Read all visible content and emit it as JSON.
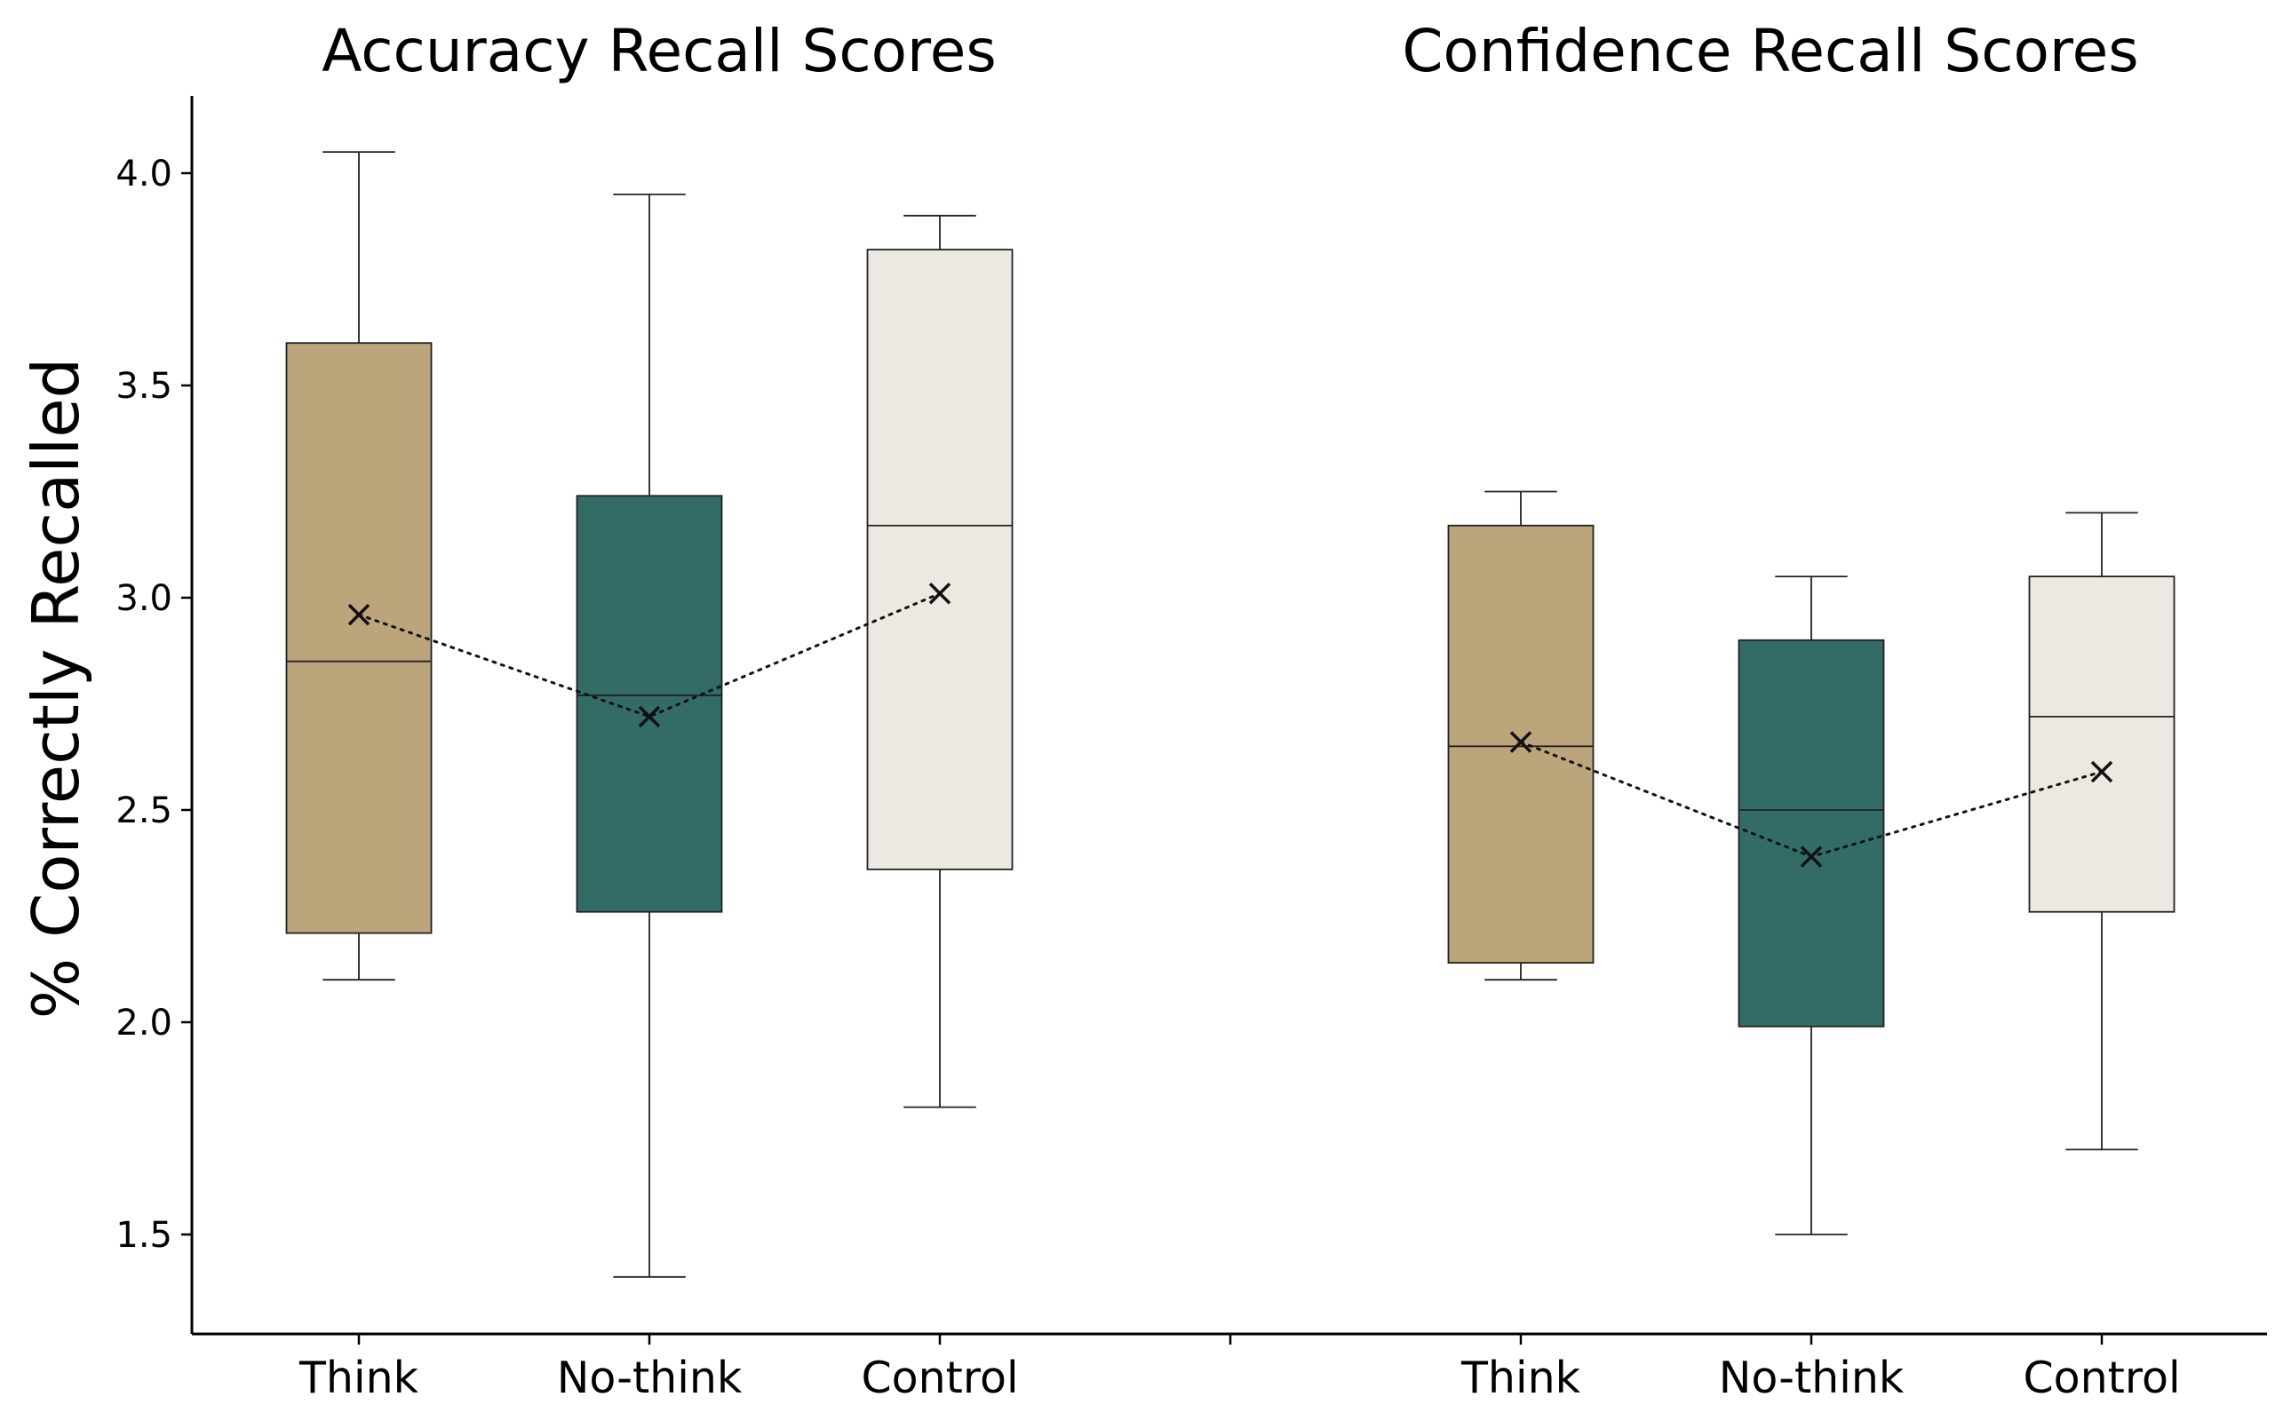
{
  "chart_data": {
    "type": "box",
    "ylabel": "% Correctly Recalled",
    "ylim": [
      1.27,
      4.18
    ],
    "yticks": [
      1.5,
      2.0,
      2.5,
      3.0,
      3.5,
      4.0
    ],
    "ytick_labels": [
      "1.5",
      "2.0",
      "2.5",
      "3.0",
      "3.5",
      "4.0"
    ],
    "colors": {
      "Think": "#bca57b",
      "No-think": "#336b66",
      "Control": "#ebe9e1"
    },
    "mean_marker": "x",
    "mean_line_style": "dotted",
    "groups": [
      {
        "title": "Accuracy Recall Scores",
        "categories": [
          "Think",
          "No-think",
          "Control"
        ],
        "boxes": [
          {
            "whislo": 2.1,
            "q1": 2.21,
            "median": 2.85,
            "q3": 3.6,
            "whishi": 4.05,
            "mean": 2.96
          },
          {
            "whislo": 1.4,
            "q1": 2.26,
            "median": 2.77,
            "q3": 3.24,
            "whishi": 3.95,
            "mean": 2.72
          },
          {
            "whislo": 1.8,
            "q1": 2.36,
            "median": 3.17,
            "q3": 3.82,
            "whishi": 3.9,
            "mean": 3.01
          }
        ]
      },
      {
        "title": "Confidence Recall Scores",
        "categories": [
          "Think",
          "No-think",
          "Control"
        ],
        "boxes": [
          {
            "whislo": 2.1,
            "q1": 2.14,
            "median": 2.65,
            "q3": 3.17,
            "whishi": 3.25,
            "mean": 2.66
          },
          {
            "whislo": 1.5,
            "q1": 1.99,
            "median": 2.5,
            "q3": 2.9,
            "whishi": 3.05,
            "mean": 2.39
          },
          {
            "whislo": 1.7,
            "q1": 2.26,
            "median": 2.72,
            "q3": 3.05,
            "whishi": 3.2,
            "mean": 2.59
          }
        ]
      }
    ]
  }
}
